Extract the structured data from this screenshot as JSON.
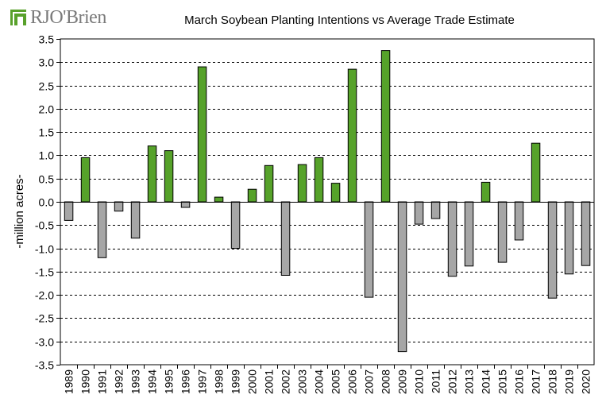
{
  "logo": {
    "text": "RJO'Brien",
    "colors": {
      "mark": "#58a12b",
      "text": "#7a7a7a"
    }
  },
  "chart_data": {
    "type": "bar",
    "title": "March Soybean Planting Intentions vs Average Trade Estimate",
    "xlabel": "",
    "ylabel": "-million acres-",
    "ylim": [
      -3.5,
      3.5
    ],
    "yticks": [
      3.5,
      3.0,
      2.5,
      2.0,
      1.5,
      1.0,
      0.5,
      0.0,
      -0.5,
      -1.0,
      -1.5,
      -2.0,
      -2.5,
      -3.0,
      -3.5
    ],
    "ytick_labels": [
      "3.5",
      "3.0",
      "2.5",
      "2.0",
      "1.5",
      "1.0",
      "0.5",
      "0.0",
      "-0.5",
      "-1.0",
      "-1.5",
      "-2.0",
      "-2.5",
      "-3.0",
      "-3.5"
    ],
    "grid": true,
    "categories": [
      "1989",
      "1990",
      "1991",
      "1992",
      "1993",
      "1994",
      "1995",
      "1996",
      "1997",
      "1998",
      "1999",
      "2000",
      "2001",
      "2002",
      "2003",
      "2004",
      "2005",
      "2006",
      "2007",
      "2008",
      "2009",
      "2010",
      "2011",
      "2012",
      "2013",
      "2014",
      "2015",
      "2016",
      "2017",
      "2018",
      "2019",
      "2020"
    ],
    "values": [
      -0.4,
      0.95,
      -1.2,
      -0.2,
      -0.78,
      1.2,
      1.1,
      -0.12,
      2.9,
      0.1,
      -1.0,
      0.27,
      0.78,
      -1.58,
      0.8,
      0.95,
      0.4,
      2.85,
      -2.05,
      3.25,
      -3.22,
      -0.48,
      -0.36,
      -1.6,
      -1.38,
      0.42,
      -1.3,
      -0.82,
      1.26,
      -2.07,
      -1.55,
      -1.37
    ],
    "colors": {
      "positive": "#56a22a",
      "negative": "#a6a6a6",
      "grid": "#000000"
    }
  }
}
